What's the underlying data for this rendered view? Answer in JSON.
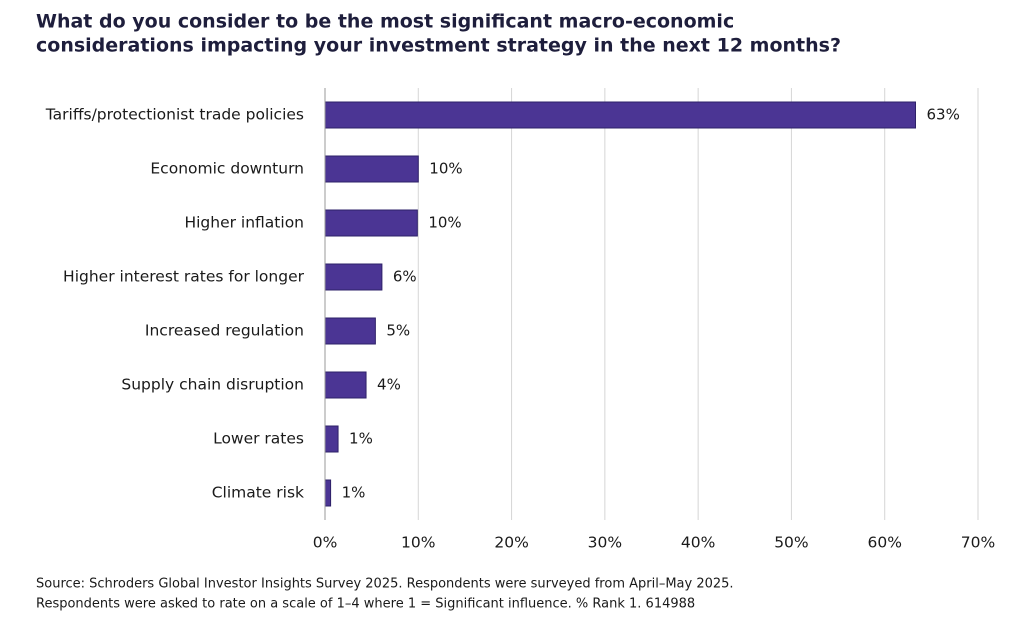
{
  "chart_data": {
    "type": "bar",
    "orientation": "horizontal",
    "title": [
      "What do you consider to be the most significant macro-economic",
      "considerations impacting your investment strategy in the next 12 months?"
    ],
    "categories": [
      "Tariffs/protectionist trade policies",
      "Economic downturn",
      "Higher inflation",
      "Higher interest rates for longer",
      "Increased regulation",
      "Supply chain disruption",
      "Lower rates",
      "Climate risk"
    ],
    "values": [
      63.3,
      10,
      9.9,
      6.1,
      5.4,
      4.4,
      1.4,
      0.6
    ],
    "value_labels": [
      "63%",
      "10%",
      "10%",
      "6%",
      "5%",
      "4%",
      "1%",
      "1%"
    ],
    "color": "#4b3594",
    "xlim": [
      0,
      70
    ],
    "xticks": [
      {
        "value": 0,
        "label": "0%"
      },
      {
        "value": 10,
        "label": "10%"
      },
      {
        "value": 20,
        "label": "20%"
      },
      {
        "value": 30,
        "label": "30%"
      },
      {
        "value": 40,
        "label": "40%"
      },
      {
        "value": 50,
        "label": "50%"
      },
      {
        "value": 60,
        "label": "60%"
      },
      {
        "value": 70,
        "label": "70%"
      }
    ],
    "grid": true,
    "source": [
      "Source: Schroders Global Investor Insights Survey 2025. Respondents were surveyed from April–May 2025.",
      "Respondents were asked to rate on a scale of 1–4 where 1 = Significant influence. % Rank 1. 614988"
    ]
  }
}
